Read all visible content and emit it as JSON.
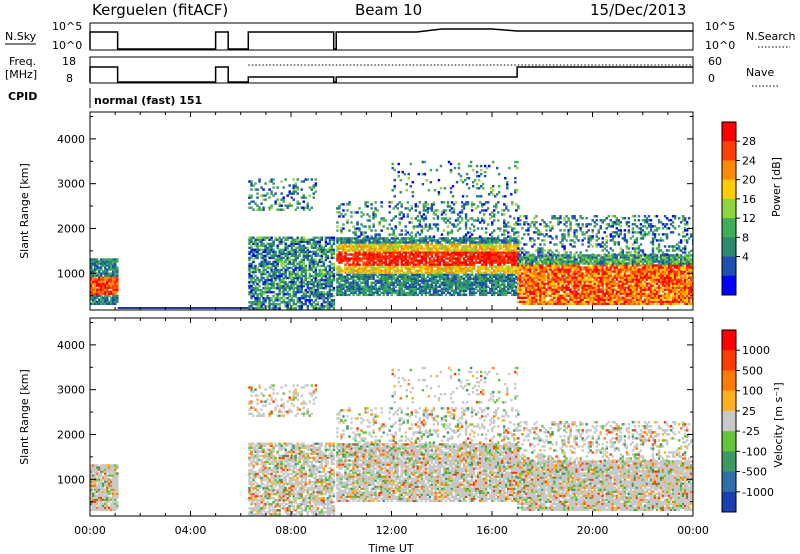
{
  "header": {
    "station": "Kerguelen (fitACF)",
    "beam": "Beam 10",
    "date": "15/Dec/2013"
  },
  "strips": {
    "nsky_label": "N.Sky",
    "nsky_ticks": [
      "10^5",
      "10^0"
    ],
    "nsearch_label": "N.Search",
    "nsearch_ticks": [
      "10^5",
      "10^0"
    ],
    "freq_label": "Freq.",
    "freq_unit": "[MHz]",
    "freq_ticks": [
      "18",
      "8"
    ],
    "nave_label": "Nave",
    "nave_ticks": [
      "60",
      "0"
    ],
    "cpid_label": "CPID",
    "cpid_value": "normal (fast) 151"
  },
  "chart_data": [
    {
      "type": "heatmap",
      "name": "power-panel",
      "ylabel": "Slant Range [km]",
      "yticks": [
        "4000",
        "3000",
        "2000",
        "1000"
      ],
      "xlabel": "Time UT",
      "colorbar": {
        "label": "Power [dB]",
        "ticks": [
          "28",
          "24",
          "20",
          "16",
          "12",
          "8",
          "4"
        ],
        "colors": [
          "#0000ff",
          "#1f4fb0",
          "#2e8a6e",
          "#3fae5a",
          "#8fd43a",
          "#ffcc00",
          "#ff8c00",
          "#ff4000",
          "#ff0000"
        ]
      }
    },
    {
      "type": "heatmap",
      "name": "velocity-panel",
      "ylabel": "Slant Range [km]",
      "yticks": [
        "4000",
        "3000",
        "2000",
        "1000"
      ],
      "xlabel": "Time UT",
      "colorbar": {
        "label": "Velocity [m s⁻¹]",
        "ticks": [
          "1000",
          "500",
          "100",
          "25",
          "-25",
          "-100",
          "-500",
          "-1000"
        ],
        "colors": [
          "#1a3fb0",
          "#2f6fa8",
          "#3c9a60",
          "#63c63a",
          "#c8c8c8",
          "#ffb020",
          "#ff7a00",
          "#ff3c00",
          "#ff0000"
        ]
      }
    }
  ],
  "xaxis": {
    "ticks": [
      "00:00",
      "04:00",
      "08:00",
      "12:00",
      "16:00",
      "20:00",
      "00:00"
    ],
    "label": "Time UT"
  }
}
